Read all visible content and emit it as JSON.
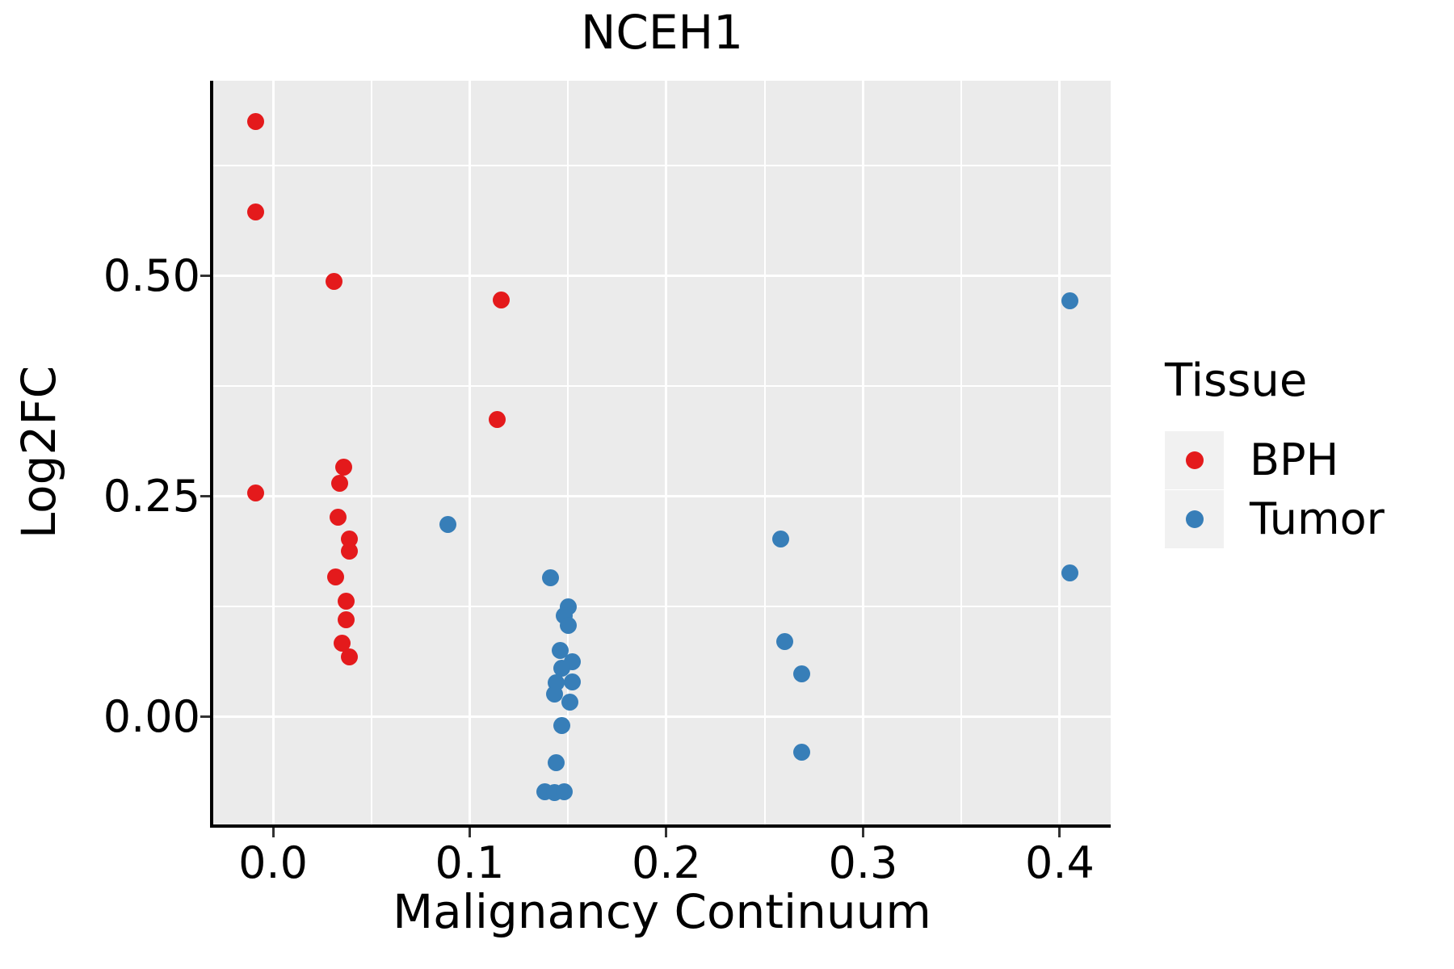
{
  "title": "NCEH1",
  "chart_data": {
    "type": "scatter",
    "title": "NCEH1",
    "xlabel": "Malignancy Continuum",
    "ylabel": "Log2FC",
    "xlim": [
      -0.0304,
      0.4259
    ],
    "ylim": [
      -0.1218,
      0.7216
    ],
    "x_ticks": [
      0.0,
      0.1,
      0.2,
      0.3,
      0.4
    ],
    "x_tick_labels": [
      "0.0",
      "0.1",
      "0.2",
      "0.3",
      "0.4"
    ],
    "x_minor_ticks": [
      0.05,
      0.15,
      0.25,
      0.35
    ],
    "y_ticks": [
      0.0,
      0.25,
      0.5
    ],
    "y_tick_labels": [
      "0.00",
      "0.25",
      "0.50"
    ],
    "y_minor_ticks": [
      0.125,
      0.375,
      0.625
    ],
    "grid": true,
    "panel_background": "#EBEBEB",
    "grid_color": "#FFFFFF",
    "legend_position": "right",
    "series": [
      {
        "name": "BPH",
        "color": "#E41A1C",
        "points": [
          [
            -0.009,
            0.675
          ],
          [
            -0.009,
            0.573
          ],
          [
            -0.009,
            0.254
          ],
          [
            0.031,
            0.494
          ],
          [
            0.036,
            0.283
          ],
          [
            0.034,
            0.265
          ],
          [
            0.033,
            0.227
          ],
          [
            0.039,
            0.202
          ],
          [
            0.039,
            0.188
          ],
          [
            0.032,
            0.159
          ],
          [
            0.037,
            0.131
          ],
          [
            0.037,
            0.11
          ],
          [
            0.035,
            0.084
          ],
          [
            0.039,
            0.068
          ],
          [
            0.116,
            0.473
          ],
          [
            0.114,
            0.337
          ]
        ]
      },
      {
        "name": "Tumor",
        "color": "#377EB8",
        "points": [
          [
            0.089,
            0.218
          ],
          [
            0.141,
            0.158
          ],
          [
            0.15,
            0.125
          ],
          [
            0.148,
            0.115
          ],
          [
            0.15,
            0.104
          ],
          [
            0.146,
            0.076
          ],
          [
            0.152,
            0.063
          ],
          [
            0.147,
            0.055
          ],
          [
            0.144,
            0.039
          ],
          [
            0.152,
            0.04
          ],
          [
            0.143,
            0.026
          ],
          [
            0.151,
            0.017
          ],
          [
            0.147,
            -0.01
          ],
          [
            0.144,
            -0.052
          ],
          [
            0.138,
            -0.085
          ],
          [
            0.143,
            -0.086
          ],
          [
            0.148,
            -0.085
          ],
          [
            0.258,
            0.202
          ],
          [
            0.26,
            0.086
          ],
          [
            0.269,
            0.049
          ],
          [
            0.269,
            -0.04
          ],
          [
            0.405,
            0.472
          ],
          [
            0.405,
            0.163
          ]
        ]
      }
    ]
  },
  "legend": {
    "title": "Tissue",
    "items": [
      {
        "label": "BPH",
        "color": "#E41A1C"
      },
      {
        "label": "Tumor",
        "color": "#377EB8"
      }
    ]
  }
}
